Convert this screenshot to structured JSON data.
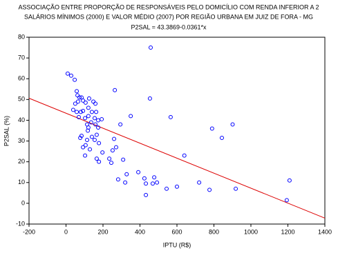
{
  "chart_data": {
    "type": "scatter",
    "title": [
      "ASSOCIAÇÃO ENTRE PROPORÇÃO DE RESPONSÁVEIS PELO DOMICÍLIO COM RENDA INFERIOR A 2",
      "SALÁRIOS MÍNIMOS (2000) E VALOR MÉDIO (2007) POR REGIÃO URBANA EM JUIZ DE FORA - MG"
    ],
    "subtitle": "P2SAL = 43.3869-0.0361*x",
    "x_label": "IPTU (R$)",
    "y_label": "P2SAL (%)",
    "color": "#0000ff",
    "fit_color": "#dd0000",
    "fit": {
      "intercept": 43.3869,
      "slope": -0.0361
    },
    "x": [
      9,
      28,
      47,
      58,
      62,
      73,
      84,
      65,
      50,
      92,
      106,
      125,
      148,
      159,
      39,
      58,
      80,
      92,
      121,
      140,
      163,
      69,
      103,
      121,
      155,
      174,
      193,
      114,
      136,
      159,
      174,
      121,
      118,
      84,
      77,
      140,
      155,
      114,
      166,
      106,
      92,
      178,
      129,
      197,
      166,
      103,
      178,
      264,
      458,
      454,
      350,
      294,
      566,
      790,
      901,
      843,
      640,
      260,
      252,
      271,
      234,
      245,
      282,
      309,
      320,
      328,
      391,
      424,
      432,
      432,
      477,
      469,
      492,
      544,
      600,
      720,
      776,
      918,
      1209,
      1194
    ],
    "values": [
      62.5,
      61.5,
      59.5,
      54,
      52,
      51,
      51,
      49,
      48,
      49.5,
      48.5,
      50.5,
      49,
      48,
      45,
      44,
      44,
      44.5,
      46,
      44,
      44,
      41.5,
      41,
      42,
      41,
      40,
      40.5,
      38,
      39,
      38,
      36.5,
      36.5,
      35,
      32.5,
      31.5,
      32,
      30.5,
      30.5,
      33,
      28,
      27,
      29,
      26,
      24.5,
      21.5,
      23,
      20,
      54.5,
      75,
      50.5,
      42,
      38,
      41.5,
      36,
      38,
      31.5,
      23,
      31,
      25.5,
      27,
      21.5,
      19.5,
      11.5,
      21,
      10,
      14,
      15,
      12,
      9.5,
      4,
      12.5,
      9.5,
      10,
      7,
      8,
      10,
      6.5,
      7,
      11,
      1.5
    ],
    "xlim": [
      -200,
      1400
    ],
    "xticks": [
      -200,
      0,
      200,
      400,
      600,
      800,
      1000,
      1200,
      1400
    ],
    "ylim": [
      -10,
      80
    ],
    "yticks": [
      -10,
      0,
      10,
      20,
      30,
      40,
      50,
      60,
      70,
      80
    ]
  }
}
